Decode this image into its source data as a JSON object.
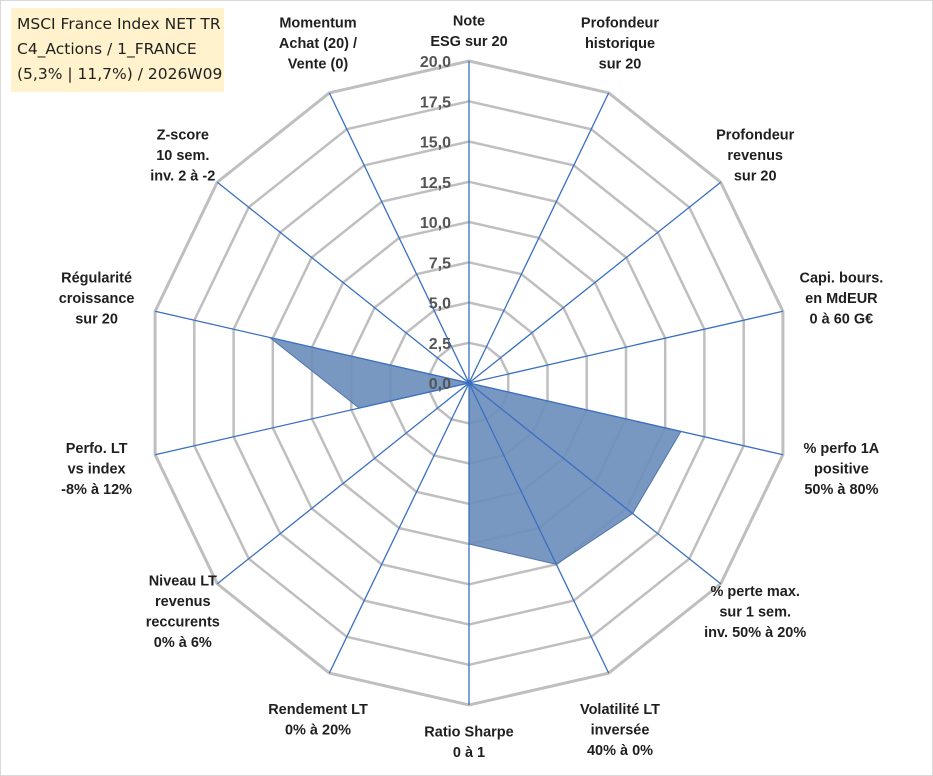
{
  "title_box": {
    "line1": "MSCI France Index NET TR",
    "line2": "C4_Actions / 1_FRANCE",
    "line3": "(5,3% | 11,7%) / 2026W09"
  },
  "chart_data": {
    "type": "radar",
    "title": "MSCI France Index NET TR",
    "rlim": [
      0,
      20
    ],
    "grid_step": 2.5,
    "tick_labels": [
      "0,0",
      "2,5",
      "5,0",
      "7,5",
      "10,0",
      "12,5",
      "15,0",
      "17,5",
      "20,0"
    ],
    "axes": [
      {
        "label": [
          "Note",
          "ESG sur 20"
        ],
        "anchor": "middle"
      },
      {
        "label": [
          "Profondeur",
          "historique",
          "sur 20"
        ],
        "anchor": "middle"
      },
      {
        "label": [
          "Profondeur",
          "revenus",
          "sur 20"
        ],
        "anchor": "middle"
      },
      {
        "label": [
          "Capi. bours.",
          "en MdEUR",
          "0 à 60 G€"
        ],
        "anchor": "middle"
      },
      {
        "label": [
          "% perfo 1A",
          "positive",
          "50% à 80%"
        ],
        "anchor": "middle"
      },
      {
        "label": [
          "% perte max.",
          "sur 1 sem.",
          "inv. 50% à 20%"
        ],
        "anchor": "middle"
      },
      {
        "label": [
          "Volatilité LT",
          "inversée",
          "40% à 0%"
        ],
        "anchor": "middle"
      },
      {
        "label": [
          "Ratio Sharpe",
          "0 à 1"
        ],
        "anchor": "middle"
      },
      {
        "label": [
          "Rendement LT",
          "0% à 20%"
        ],
        "anchor": "middle"
      },
      {
        "label": [
          "Niveau LT",
          "revenus",
          "reccurents",
          "0% à 6%"
        ],
        "anchor": "middle"
      },
      {
        "label": [
          "Perfo. LT",
          "vs index",
          "-8% à 12%"
        ],
        "anchor": "middle"
      },
      {
        "label": [
          "Régularité",
          "croissance",
          "sur 20"
        ],
        "anchor": "middle"
      },
      {
        "label": [
          "Z-score",
          "10 sem.",
          "inv. 2 à -2"
        ],
        "anchor": "middle"
      },
      {
        "label": [
          "Momentum",
          "Achat (20) /",
          "Vente (0)"
        ],
        "anchor": "middle"
      }
    ],
    "series": [
      {
        "name": "MSCI France Index NET TR",
        "values": [
          0,
          0,
          0,
          0,
          13.5,
          13.0,
          12.5,
          10.0,
          0,
          0,
          7.0,
          12.7,
          0,
          0
        ]
      }
    ],
    "colors": {
      "fill": "#6d8fbd",
      "fill_stroke": "#4f75aa",
      "spoke": "#3a6fc0",
      "grid": "#bfbfbf"
    }
  }
}
